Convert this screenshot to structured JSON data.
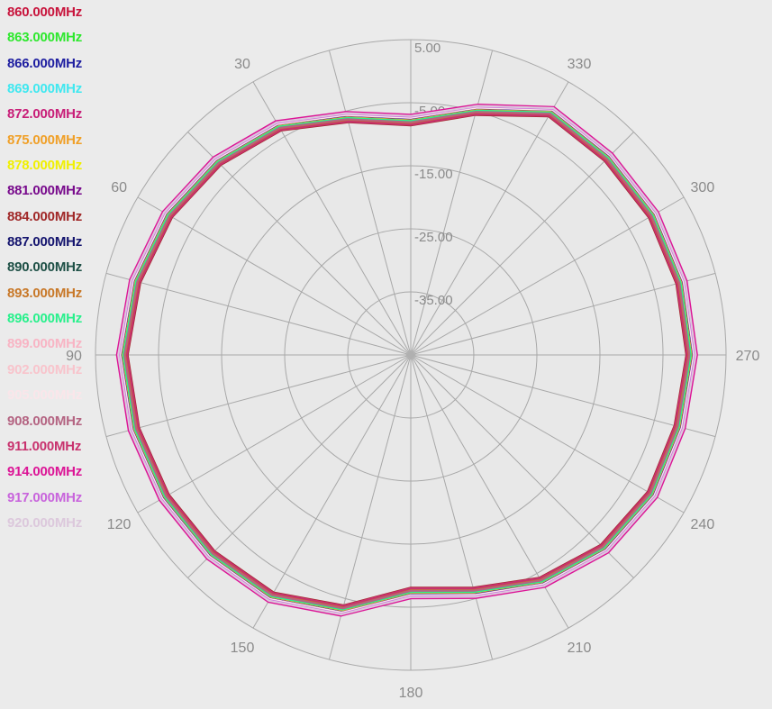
{
  "chart_data": {
    "type": "polar-line",
    "radial_ticks": [
      "5.00",
      "-5.00",
      "-15.00",
      "-25.00",
      "-35.00"
    ],
    "radial_range": [
      -45,
      5
    ],
    "angle_labels": [
      "330",
      "300",
      "270",
      "240",
      "210",
      "180",
      "150",
      "120",
      "90",
      "60",
      "30"
    ],
    "angle_step_deg": 15,
    "angle_direction": "counterclockwise from top",
    "grid": true,
    "legend_position": "top-left",
    "series": [
      {
        "name": "860.000MHz",
        "color": "#c8143c"
      },
      {
        "name": "863.000MHz",
        "color": "#2ee82e"
      },
      {
        "name": "866.000MHz",
        "color": "#1e1ea0"
      },
      {
        "name": "869.000MHz",
        "color": "#40e8f0"
      },
      {
        "name": "872.000MHz",
        "color": "#c81e78"
      },
      {
        "name": "875.000MHz",
        "color": "#f0a028"
      },
      {
        "name": "878.000MHz",
        "color": "#f0f000"
      },
      {
        "name": "881.000MHz",
        "color": "#780a8c"
      },
      {
        "name": "884.000MHz",
        "color": "#a02828"
      },
      {
        "name": "887.000MHz",
        "color": "#14146e"
      },
      {
        "name": "890.000MHz",
        "color": "#1e5046"
      },
      {
        "name": "893.000MHz",
        "color": "#c87828"
      },
      {
        "name": "896.000MHz",
        "color": "#28f08c"
      },
      {
        "name": "899.000MHz",
        "color": "#f8b4c4"
      },
      {
        "name": "902.000MHz",
        "color": "#f8c4cc"
      },
      {
        "name": "905.000MHz",
        "color": "#fae6ea"
      },
      {
        "name": "908.000MHz",
        "color": "#b46482"
      },
      {
        "name": "911.000MHz",
        "color": "#c8326e"
      },
      {
        "name": "914.000MHz",
        "color": "#dc1496"
      },
      {
        "name": "917.000MHz",
        "color": "#c864dc"
      },
      {
        "name": "920.000MHz",
        "color": "#dcc8dc"
      }
    ],
    "pattern_angles_deg": [
      0,
      15,
      30,
      45,
      60,
      75,
      90,
      105,
      120,
      135,
      150,
      165,
      180,
      195,
      210,
      225,
      240,
      255,
      270,
      285,
      300,
      315,
      330,
      345
    ],
    "pattern_gain_db": [
      -7.8,
      -6.0,
      -3.1,
      -1.6,
      -0.5,
      0.2,
      0.7,
      0.4,
      0.1,
      -0.2,
      -0.7,
      -3.1,
      -7.3,
      -6.0,
      -3.4,
      -1.6,
      -0.8,
      -0.9,
      -0.5,
      -0.6,
      -0.6,
      -0.7,
      -0.5,
      -4.8
    ],
    "series_offsets_db": [
      -0.6,
      0.0,
      0.3,
      0.5,
      0.4,
      0.0,
      -0.3,
      -0.4,
      -0.8,
      -0.2,
      -0.6,
      -0.5,
      -0.1,
      0.6,
      0.8,
      0.4,
      -0.3,
      -0.7,
      0.9,
      0.6,
      0.7
    ]
  }
}
